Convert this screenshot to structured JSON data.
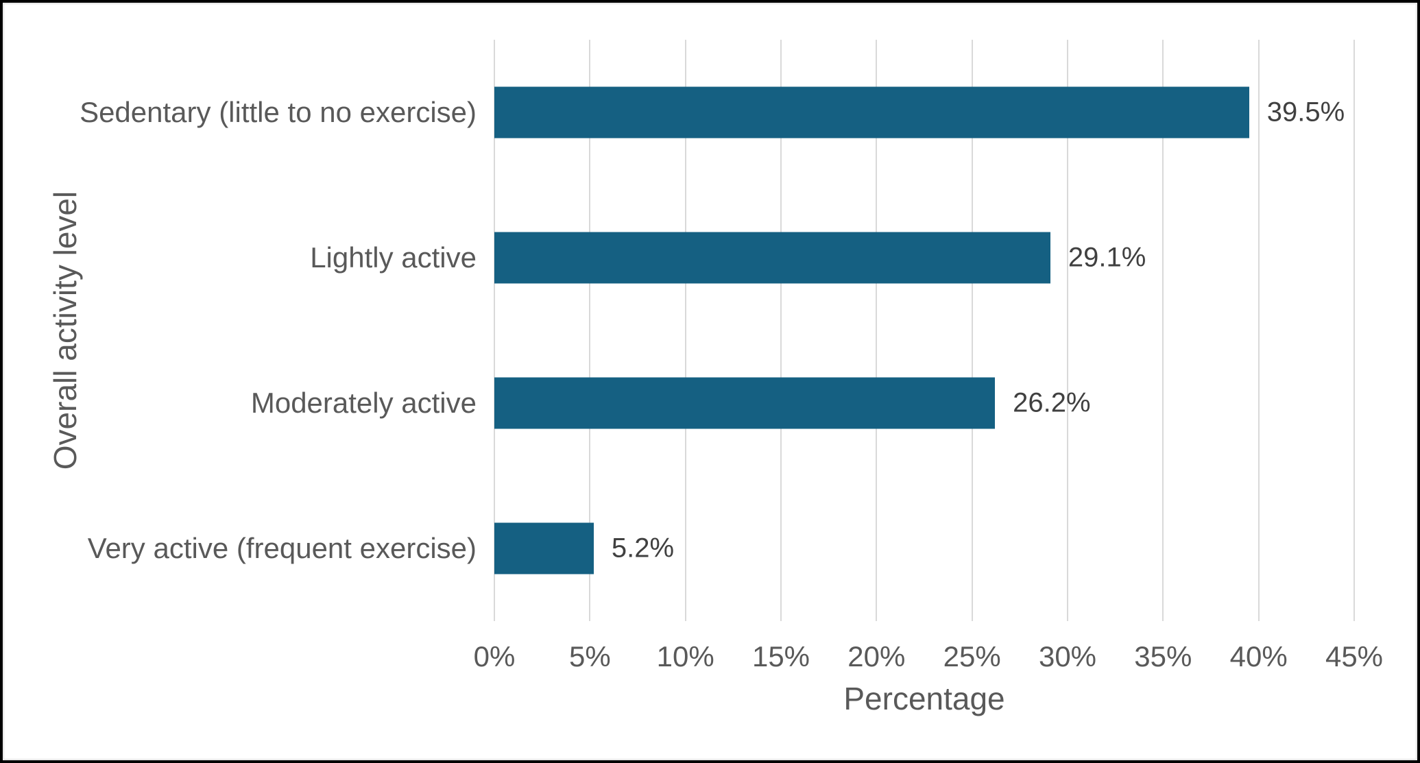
{
  "chart_data": {
    "type": "bar",
    "orientation": "horizontal",
    "categories": [
      "Sedentary (little to no exercise)",
      "Lightly active",
      "Moderately active",
      "Very active (frequent exercise)"
    ],
    "values": [
      39.5,
      29.1,
      26.2,
      5.2
    ],
    "data_labels": [
      "39.5%",
      "29.1%",
      "26.2%",
      "5.2%"
    ],
    "xlabel": "Percentage",
    "ylabel": "Overall activity level",
    "xlim": [
      0,
      45
    ],
    "x_tick_values": [
      0,
      5,
      10,
      15,
      20,
      25,
      30,
      35,
      40,
      45
    ],
    "x_tick_labels": [
      "0%",
      "5%",
      "10%",
      "15%",
      "20%",
      "25%",
      "30%",
      "35%",
      "40%",
      "45%"
    ],
    "grid": "vertical-only",
    "legend": "none",
    "colors": {
      "bar": "#156082",
      "gridline": "#d9d9d9",
      "tick_text": "#595959",
      "category_text": "#595959",
      "data_label_text": "#404040",
      "axis_title_text": "#595959",
      "background": "#ffffff",
      "frame_border": "#000000"
    }
  }
}
